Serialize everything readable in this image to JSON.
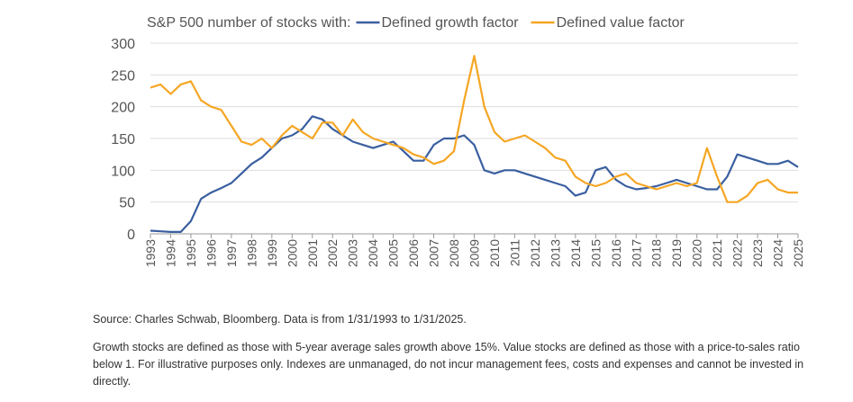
{
  "chart_data": {
    "type": "line",
    "title": "S&P 500 number of stocks with:",
    "x": [
      1993,
      1993.5,
      1994,
      1994.5,
      1995,
      1995.5,
      1996,
      1996.5,
      1997,
      1997.5,
      1998,
      1998.5,
      1999,
      1999.5,
      2000,
      2000.5,
      2001,
      2001.5,
      2002,
      2002.5,
      2003,
      2003.5,
      2004,
      2004.5,
      2005,
      2005.5,
      2006,
      2006.5,
      2007,
      2007.5,
      2008,
      2008.5,
      2009,
      2009.5,
      2010,
      2010.5,
      2011,
      2011.5,
      2012,
      2012.5,
      2013,
      2013.5,
      2014,
      2014.5,
      2015,
      2015.5,
      2016,
      2016.5,
      2017,
      2017.5,
      2018,
      2018.5,
      2019,
      2019.5,
      2020,
      2020.5,
      2021,
      2021.5,
      2022,
      2022.5,
      2023,
      2023.5,
      2024,
      2024.5,
      2025
    ],
    "series": [
      {
        "name": "Defined growth factor",
        "color": "#3a5fa0",
        "values": [
          5,
          4,
          3,
          3,
          20,
          55,
          65,
          72,
          80,
          95,
          110,
          120,
          135,
          150,
          155,
          165,
          185,
          180,
          165,
          155,
          145,
          140,
          135,
          140,
          145,
          130,
          115,
          115,
          140,
          150,
          150,
          155,
          140,
          100,
          95,
          100,
          100,
          95,
          90,
          85,
          80,
          75,
          60,
          65,
          100,
          105,
          85,
          75,
          70,
          72,
          75,
          80,
          85,
          80,
          75,
          70,
          70,
          90,
          125,
          120,
          115,
          110,
          110,
          115,
          105
        ]
      },
      {
        "name": "Defined value factor",
        "color": "#f5a623",
        "values": [
          230,
          235,
          220,
          235,
          240,
          210,
          200,
          195,
          170,
          145,
          140,
          150,
          135,
          155,
          170,
          160,
          150,
          175,
          175,
          155,
          180,
          160,
          150,
          145,
          140,
          135,
          125,
          120,
          110,
          115,
          130,
          210,
          280,
          200,
          160,
          145,
          150,
          155,
          145,
          135,
          120,
          115,
          90,
          80,
          75,
          80,
          90,
          95,
          80,
          75,
          70,
          75,
          80,
          75,
          80,
          135,
          90,
          50,
          50,
          60,
          80,
          85,
          70,
          65,
          65
        ]
      }
    ],
    "xlim": [
      1993,
      2025
    ],
    "xticks": [
      1993,
      1994,
      1995,
      1996,
      1997,
      1998,
      1999,
      2000,
      2001,
      2002,
      2003,
      2004,
      2005,
      2006,
      2007,
      2008,
      2009,
      2010,
      2011,
      2012,
      2013,
      2014,
      2015,
      2016,
      2017,
      2018,
      2019,
      2020,
      2021,
      2022,
      2023,
      2024,
      2025
    ],
    "ylim": [
      0,
      300
    ],
    "yticks": [
      0,
      50,
      100,
      150,
      200,
      250,
      300
    ],
    "grid": true
  },
  "source": "Source: Charles Schwab, Bloomberg. Data is from 1/31/1993 to 1/31/2025.",
  "note": "Growth stocks are defined as those with 5-year average sales growth above 15%. Value stocks are defined as those with a price-to-sales ratio below 1. For illustrative purposes only. Indexes are unmanaged, do not incur management fees, costs and expenses and cannot be invested in directly."
}
